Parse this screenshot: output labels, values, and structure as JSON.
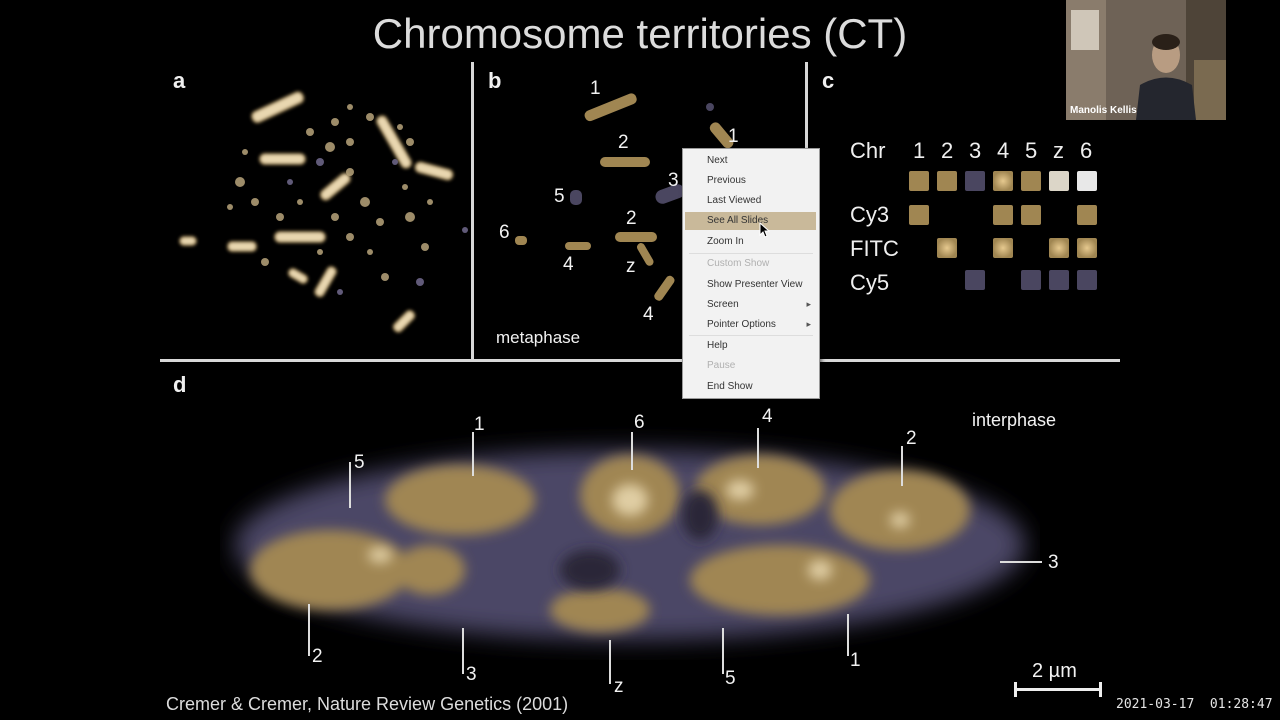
{
  "title": "Chromosome territories (CT)",
  "panels": {
    "a": "a",
    "b": "b",
    "c": "c",
    "d": "d"
  },
  "panel_b": {
    "labels": [
      "1",
      "1",
      "2",
      "3",
      "5",
      "2",
      "6",
      "4",
      "z",
      "4"
    ],
    "caption": "metaphase"
  },
  "panel_c": {
    "header": [
      "Chr",
      "1",
      "2",
      "3",
      "4",
      "5",
      "z",
      "6"
    ],
    "rows": [
      "Cy3",
      "FITC",
      "Cy5"
    ]
  },
  "panel_d": {
    "caption": "interphase",
    "labels": [
      "5",
      "1",
      "6",
      "4",
      "2",
      "3",
      "2",
      "3",
      "z",
      "5",
      "1"
    ],
    "scale": "2 µm"
  },
  "citation": "Cremer & Cremer, Nature Review Genetics (2001)",
  "timestamp": "2021-03-17  01:28:47",
  "webcam": {
    "name": "Manolis Kellis"
  },
  "context_menu": {
    "items": [
      {
        "label": "Next",
        "disabled": false
      },
      {
        "label": "Previous",
        "disabled": false
      },
      {
        "label": "Last Viewed",
        "disabled": false
      },
      {
        "label": "See All Slides",
        "disabled": false
      },
      {
        "label": "Zoom In",
        "disabled": false
      },
      {
        "label": "Custom Show",
        "disabled": true
      },
      {
        "label": "Show Presenter View",
        "disabled": false
      },
      {
        "label": "Screen",
        "disabled": false
      },
      {
        "label": "Pointer Options",
        "disabled": false
      },
      {
        "label": "Help",
        "disabled": false
      },
      {
        "label": "Pause",
        "disabled": true
      },
      {
        "label": "End Show",
        "disabled": false
      }
    ]
  },
  "colors": {
    "tan": "#a08652",
    "lavender": "#4a4660",
    "background": "#000000"
  }
}
